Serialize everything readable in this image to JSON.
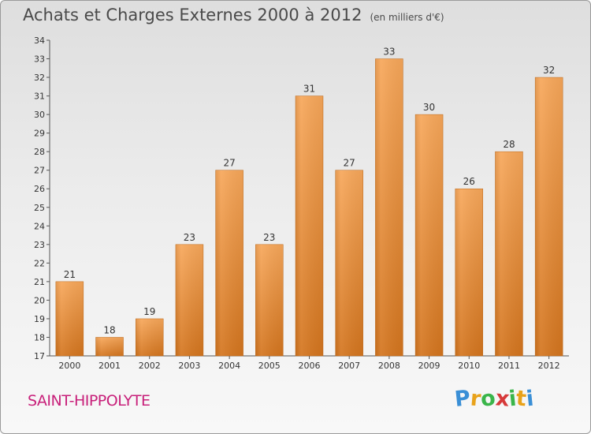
{
  "header": {
    "title": "Achats et Charges Externes 2000 à 2012",
    "unit": "(en milliers d'€)"
  },
  "footer": {
    "location": "SAINT-HIPPOLYTE",
    "logo_letters": [
      "P",
      "r",
      "o",
      "x",
      "i",
      "t",
      "i"
    ],
    "logo_colors": [
      "#3a8fd6",
      "#e8a21a",
      "#3ab54a",
      "#d63a3a",
      "#3ab54a",
      "#e8a21a",
      "#3a8fd6"
    ]
  },
  "colors": {
    "bar_top": "#f7a75a",
    "bar_bottom": "#d4751e",
    "axis": "#555555"
  },
  "chart_data": {
    "type": "bar",
    "categories": [
      "2000",
      "2001",
      "2002",
      "2003",
      "2004",
      "2005",
      "2006",
      "2007",
      "2008",
      "2009",
      "2010",
      "2011",
      "2012"
    ],
    "values": [
      21,
      18,
      19,
      23,
      27,
      23,
      31,
      27,
      33,
      30,
      26,
      28,
      32
    ],
    "title": "Achats et Charges Externes 2000 à 2012",
    "xlabel": "",
    "ylabel": "",
    "ylim": [
      17,
      34
    ],
    "yticks": [
      17,
      18,
      19,
      20,
      21,
      22,
      23,
      24,
      25,
      26,
      27,
      28,
      29,
      30,
      31,
      32,
      33,
      34
    ],
    "grid": false,
    "legend": "none"
  }
}
